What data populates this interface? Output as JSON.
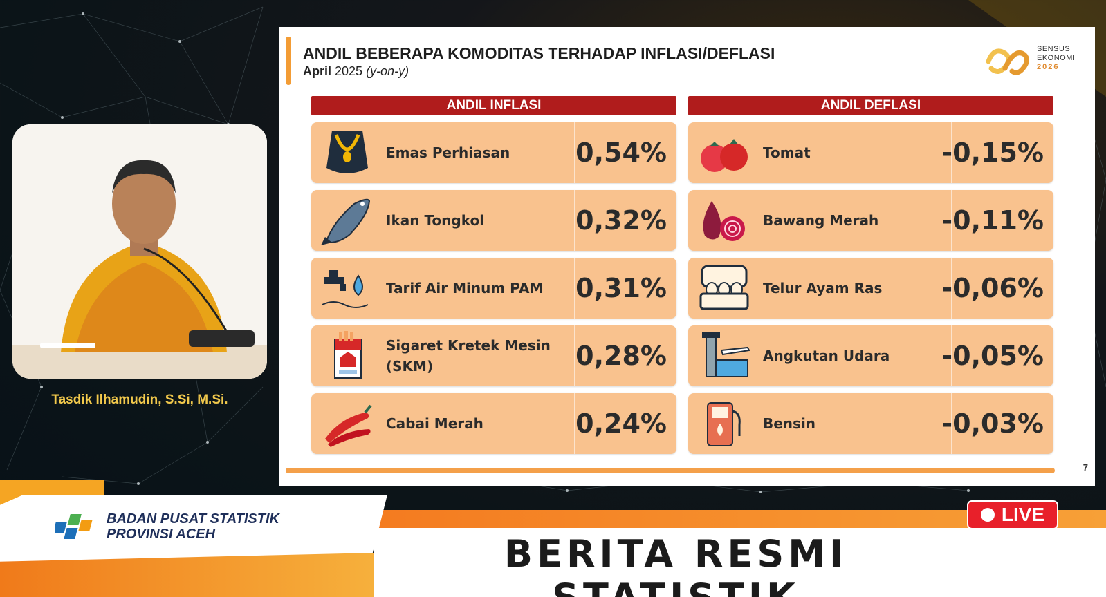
{
  "speaker": {
    "name": "Tasdik Ilhamudin, S.Si, M.Si."
  },
  "slide": {
    "title": "ANDIL BEBERAPA KOMODITAS TERHADAP INFLASI/DEFLASI",
    "subtitle_month": "April",
    "subtitle_year": " 2025 ",
    "subtitle_yoy": "(y-on-y)",
    "page_number": "7",
    "logo": {
      "line1": "SENSUS",
      "line2": "EKONOMI",
      "line3": "2026"
    },
    "inflasi": {
      "header": "ANDIL INFLASI",
      "items": [
        {
          "label": "Emas Perhiasan",
          "value": "0,54%",
          "icon": "necklace-icon"
        },
        {
          "label": "Ikan Tongkol",
          "value": "0,32%",
          "icon": "fish-icon"
        },
        {
          "label": "Tarif Air Minum PAM",
          "value": "0,31%",
          "icon": "water-tap-icon"
        },
        {
          "label": "Sigaret Kretek Mesin (SKM)",
          "value": "0,28%",
          "icon": "cigarette-pack-icon"
        },
        {
          "label": "Cabai Merah",
          "value": "0,24%",
          "icon": "chili-icon"
        }
      ]
    },
    "deflasi": {
      "header": "ANDIL DEFLASI",
      "items": [
        {
          "label": "Tomat",
          "value": "-0,15%",
          "icon": "tomato-icon"
        },
        {
          "label": "Bawang Merah",
          "value": "-0,11%",
          "icon": "shallot-icon"
        },
        {
          "label": "Telur Ayam Ras",
          "value": "-0,06%",
          "icon": "egg-carton-icon"
        },
        {
          "label": "Angkutan Udara",
          "value": "-0,05%",
          "icon": "airport-icon"
        },
        {
          "label": "Bensin",
          "value": "-0,03%",
          "icon": "fuel-pump-icon"
        }
      ]
    }
  },
  "broadcast": {
    "org_line1": "BADAN PUSAT STATISTIK",
    "org_line2": "PROVINSI ACEH",
    "program_title": "BERITA RESMI STATISTIK",
    "live_label": "LIVE"
  },
  "colors": {
    "header_red": "#b01c1c",
    "row_peach": "#f9c28e",
    "accent_orange": "#f39c35",
    "live_red": "#e8202a"
  }
}
